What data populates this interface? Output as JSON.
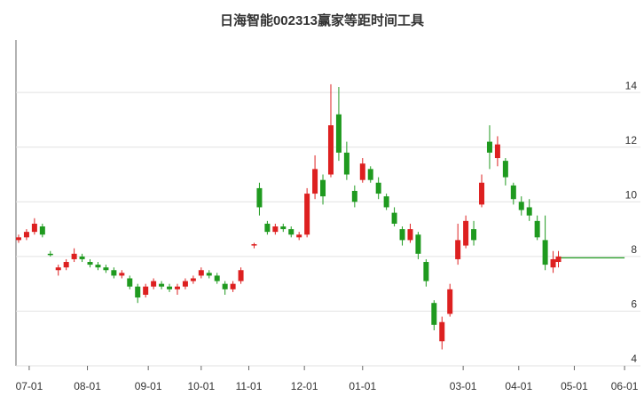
{
  "chart_data": {
    "type": "candlestick",
    "title": "日海智能002313赢家等距时间工具",
    "up_color": "#dd2020",
    "down_color": "#1f9a1f",
    "xlim": [
      -5,
      231
    ],
    "ylim": [
      4,
      15.5
    ],
    "xticks": [
      {
        "value": 0,
        "label": "07-01"
      },
      {
        "value": 22,
        "label": "08-01"
      },
      {
        "value": 45,
        "label": "09-01"
      },
      {
        "value": 65,
        "label": "10-01"
      },
      {
        "value": 83,
        "label": "11-01"
      },
      {
        "value": 104,
        "label": "12-01"
      },
      {
        "value": 126,
        "label": "01-01"
      },
      {
        "value": 164,
        "label": "03-01"
      },
      {
        "value": 185,
        "label": "04-01"
      },
      {
        "value": 206,
        "label": "05-01"
      },
      {
        "value": 225,
        "label": "06-01"
      }
    ],
    "yticks": [
      4,
      6,
      8,
      10,
      12,
      14
    ],
    "grid": true,
    "x": [
      -4,
      -1,
      2,
      5,
      8,
      11,
      14,
      17,
      20,
      23,
      26,
      29,
      32,
      35,
      38,
      41,
      44,
      47,
      50,
      53,
      56,
      59,
      62,
      65,
      68,
      71,
      74,
      77,
      80,
      85,
      87,
      90,
      93,
      96,
      99,
      102,
      105,
      108,
      111,
      114,
      117,
      120,
      123,
      126,
      129,
      132,
      135,
      138,
      141,
      144,
      147,
      150,
      153,
      156,
      159,
      162,
      165,
      168,
      171,
      174,
      177,
      180,
      183,
      186,
      189,
      192,
      195,
      198,
      200
    ],
    "ohlc": [
      [
        8.6,
        8.8,
        8.5,
        8.7
      ],
      [
        8.7,
        9.0,
        8.6,
        8.9
      ],
      [
        8.9,
        9.4,
        8.8,
        9.2
      ],
      [
        9.1,
        9.2,
        8.7,
        8.8
      ],
      [
        8.1,
        8.2,
        8.0,
        8.05
      ],
      [
        7.5,
        7.7,
        7.3,
        7.6
      ],
      [
        7.6,
        7.9,
        7.5,
        7.8
      ],
      [
        7.9,
        8.3,
        7.8,
        8.1
      ],
      [
        8.0,
        8.1,
        7.8,
        7.9
      ],
      [
        7.8,
        7.9,
        7.6,
        7.7
      ],
      [
        7.7,
        7.8,
        7.5,
        7.6
      ],
      [
        7.6,
        7.7,
        7.4,
        7.5
      ],
      [
        7.5,
        7.6,
        7.2,
        7.3
      ],
      [
        7.3,
        7.5,
        7.2,
        7.4
      ],
      [
        7.2,
        7.3,
        6.8,
        6.9
      ],
      [
        6.9,
        7.0,
        6.3,
        6.5
      ],
      [
        6.6,
        7.0,
        6.5,
        6.9
      ],
      [
        6.9,
        7.2,
        6.8,
        7.1
      ],
      [
        7.0,
        7.1,
        6.8,
        6.9
      ],
      [
        6.9,
        7.0,
        6.7,
        6.8
      ],
      [
        6.8,
        7.0,
        6.6,
        6.9
      ],
      [
        6.9,
        7.2,
        6.8,
        7.1
      ],
      [
        7.1,
        7.3,
        7.0,
        7.2
      ],
      [
        7.3,
        7.6,
        7.2,
        7.5
      ],
      [
        7.4,
        7.5,
        7.2,
        7.3
      ],
      [
        7.3,
        7.4,
        7.0,
        7.1
      ],
      [
        7.0,
        7.1,
        6.6,
        6.8
      ],
      [
        6.8,
        7.1,
        6.7,
        7.0
      ],
      [
        7.1,
        7.6,
        7.0,
        7.5
      ],
      [
        8.4,
        8.5,
        8.3,
        8.45
      ],
      [
        10.5,
        10.7,
        9.5,
        9.8
      ],
      [
        9.2,
        9.3,
        8.8,
        8.9
      ],
      [
        8.9,
        9.2,
        8.8,
        9.1
      ],
      [
        9.1,
        9.2,
        8.9,
        9.0
      ],
      [
        9.0,
        9.1,
        8.7,
        8.8
      ],
      [
        8.7,
        8.9,
        8.6,
        8.8
      ],
      [
        8.8,
        10.5,
        8.7,
        10.3
      ],
      [
        10.3,
        11.7,
        10.1,
        11.2
      ],
      [
        10.8,
        11.0,
        9.9,
        10.2
      ],
      [
        11.0,
        14.3,
        10.9,
        12.8
      ],
      [
        13.2,
        14.2,
        11.5,
        11.8
      ],
      [
        11.8,
        12.2,
        10.8,
        11.0
      ],
      [
        10.4,
        10.6,
        9.8,
        10.0
      ],
      [
        10.8,
        11.6,
        10.7,
        11.4
      ],
      [
        11.2,
        11.3,
        10.7,
        10.8
      ],
      [
        10.7,
        10.9,
        10.1,
        10.3
      ],
      [
        10.2,
        10.3,
        9.7,
        9.8
      ],
      [
        9.6,
        9.8,
        9.1,
        9.2
      ],
      [
        9.0,
        9.1,
        8.4,
        8.6
      ],
      [
        8.6,
        9.2,
        8.5,
        9.0
      ],
      [
        8.8,
        8.9,
        7.9,
        8.1
      ],
      [
        7.8,
        7.9,
        6.9,
        7.1
      ],
      [
        6.3,
        6.4,
        5.3,
        5.5
      ],
      [
        4.9,
        5.8,
        4.6,
        5.6
      ],
      [
        5.9,
        7.0,
        5.8,
        6.8
      ],
      [
        7.9,
        9.2,
        7.7,
        8.6
      ],
      [
        8.4,
        9.5,
        8.3,
        9.3
      ],
      [
        9.0,
        9.3,
        8.4,
        8.6
      ],
      [
        9.9,
        11.0,
        9.8,
        10.7
      ],
      [
        12.2,
        12.8,
        11.2,
        11.8
      ],
      [
        11.6,
        12.4,
        11.3,
        12.1
      ],
      [
        11.5,
        11.6,
        10.6,
        10.9
      ],
      [
        10.6,
        10.7,
        9.9,
        10.1
      ],
      [
        10.0,
        10.2,
        9.5,
        9.7
      ],
      [
        9.8,
        10.1,
        9.3,
        9.5
      ],
      [
        9.3,
        9.5,
        8.6,
        8.7
      ],
      [
        8.6,
        9.5,
        7.5,
        7.7
      ],
      [
        7.6,
        8.2,
        7.4,
        7.9
      ],
      [
        7.8,
        8.2,
        7.6,
        8.0
      ]
    ],
    "line": {
      "color": "#1f9a1f",
      "x": [
        201,
        225
      ],
      "values": [
        7.95,
        7.95
      ]
    }
  }
}
